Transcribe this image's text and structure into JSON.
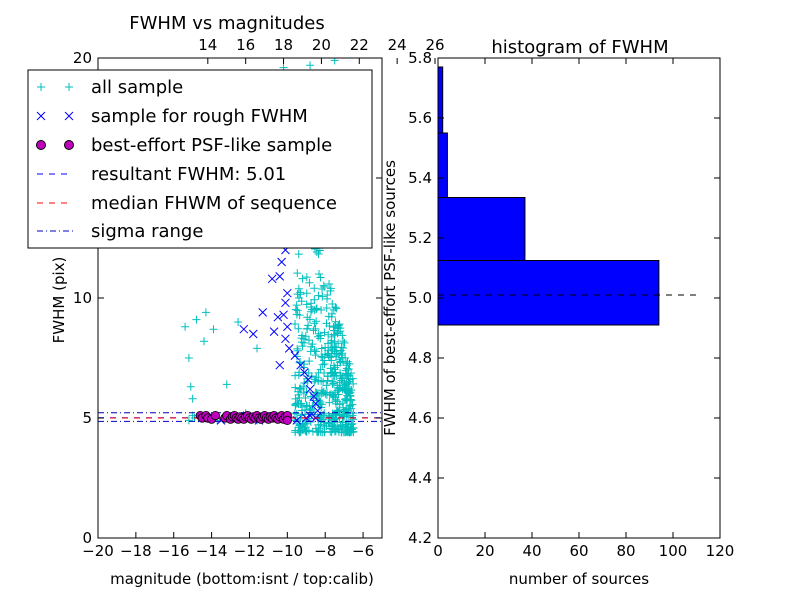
{
  "chart_data": [
    {
      "type": "scatter",
      "title": "FWHM vs magnitudes",
      "xlabel": "magnitude (bottom:isnt / top:calib)",
      "ylabel": "FWHM (pix)",
      "xlim": [
        -20,
        -5
      ],
      "ylim": [
        0,
        20
      ],
      "x_ticks": [
        -20,
        -18,
        -16,
        -14,
        -12,
        -10,
        -8,
        -6
      ],
      "x_tick_labels": [
        "−20",
        "−18",
        "−16",
        "−14",
        "−12",
        "−10",
        "−8",
        "−6"
      ],
      "y_ticks": [
        0,
        5,
        10,
        15,
        20
      ],
      "y_tick_labels": [
        "0",
        "5",
        "10",
        "15",
        "20"
      ],
      "top_axis": {
        "ticks": [
          14,
          16,
          18,
          20,
          22,
          24,
          26
        ],
        "labels": [
          "14",
          "16",
          "18",
          "20",
          "22",
          "24",
          "26"
        ],
        "offset": 28.2
      },
      "grid": false,
      "legend_position": "upper-left",
      "series": [
        {
          "name": "all sample",
          "marker": "plus",
          "color": "#00bfbf",
          "points": [
            [
              -15.4,
              8.8
            ],
            [
              -15.2,
              7.5
            ],
            [
              -15.1,
              6.3
            ],
            [
              -15.0,
              5.8
            ],
            [
              -15.0,
              5.1
            ],
            [
              -14.8,
              9.1
            ],
            [
              -14.4,
              8.2
            ],
            [
              -14.3,
              9.4
            ],
            [
              -13.9,
              8.7
            ],
            [
              -13.6,
              12.4
            ],
            [
              -13.2,
              6.4
            ],
            [
              -13.0,
              14.3
            ],
            [
              -12.8,
              18.7
            ],
            [
              -12.6,
              9.0
            ],
            [
              -12.2,
              5.2
            ],
            [
              -11.9,
              18.4
            ],
            [
              -11.6,
              7.9
            ],
            [
              -11.0,
              12.8
            ],
            [
              -10.6,
              16.1
            ],
            [
              -10.3,
              18.8
            ],
            [
              -15.2,
              4.9
            ],
            [
              -14.9,
              5.0
            ],
            [
              -14.6,
              5.1
            ],
            [
              -14.2,
              5.0
            ],
            [
              -13.7,
              4.9
            ],
            [
              -13.2,
              5.0
            ],
            [
              -12.7,
              5.1
            ],
            [
              -12.1,
              5.0
            ],
            [
              -11.6,
              4.9
            ],
            [
              -11.1,
              5.0
            ],
            [
              -10.6,
              5.1
            ],
            [
              -10.2,
              5.0
            ],
            [
              -9.9,
              4.9
            ],
            [
              -9.6,
              5.2
            ],
            [
              -9.3,
              5.0
            ],
            [
              -10.2,
              19.6
            ],
            [
              -9.9,
              19.1
            ],
            [
              -9.5,
              16.4
            ],
            [
              -9.1,
              18.3
            ],
            [
              -8.8,
              19.7
            ],
            [
              -8.4,
              19.2
            ],
            [
              -8.2,
              17.8
            ],
            [
              -8.0,
              18.8
            ],
            [
              -7.8,
              16.9
            ],
            [
              -7.5,
              19.9
            ]
          ],
          "cloud": {
            "count": 520,
            "mag_range": [
              -9.6,
              -6.5
            ],
            "fwhm_low": 4.4,
            "fwhm_high": 17.5,
            "seed": 7
          }
        },
        {
          "name": "sample for rough FWHM",
          "marker": "x",
          "color": "#0000ff",
          "points": [
            [
              -10.3,
              17.0
            ],
            [
              -10.2,
              16.2
            ],
            [
              -10.1,
              15.6
            ],
            [
              -10.0,
              15.1
            ],
            [
              -10.0,
              14.5
            ],
            [
              -10.3,
              13.8
            ],
            [
              -10.2,
              13.1
            ],
            [
              -10.0,
              12.6
            ],
            [
              -10.1,
              12.0
            ],
            [
              -10.3,
              11.5
            ],
            [
              -10.4,
              10.9
            ],
            [
              -10.0,
              10.2
            ],
            [
              -10.1,
              9.8
            ],
            [
              -10.2,
              9.3
            ],
            [
              -10.0,
              8.8
            ],
            [
              -10.1,
              8.3
            ],
            [
              -9.9,
              7.9
            ],
            [
              -9.6,
              7.6
            ],
            [
              -9.3,
              7.2
            ],
            [
              -9.1,
              6.9
            ],
            [
              -8.9,
              6.6
            ],
            [
              -8.8,
              6.2
            ],
            [
              -8.6,
              5.9
            ],
            [
              -8.5,
              5.6
            ],
            [
              -8.4,
              5.3
            ],
            [
              -11.8,
              16.6
            ],
            [
              -11.5,
              12.4
            ],
            [
              -11.2,
              14.3
            ],
            [
              -10.8,
              10.8
            ],
            [
              -10.5,
              9.2
            ],
            [
              -11.3,
              9.4
            ],
            [
              -12.3,
              8.7
            ],
            [
              -11.8,
              8.5
            ],
            [
              -10.7,
              8.6
            ],
            [
              -10.4,
              7.2
            ],
            [
              -14.5,
              5.0
            ],
            [
              -14.0,
              5.1
            ],
            [
              -13.5,
              4.9
            ],
            [
              -13.0,
              5.0
            ],
            [
              -12.5,
              5.1
            ],
            [
              -12.0,
              5.0
            ],
            [
              -11.5,
              4.9
            ],
            [
              -11.0,
              5.0
            ],
            [
              -10.5,
              5.1
            ],
            [
              -10.0,
              5.0
            ],
            [
              -9.5,
              4.9
            ],
            [
              -9.0,
              5.0
            ],
            [
              -8.8,
              5.1
            ],
            [
              -8.5,
              5.0
            ]
          ]
        },
        {
          "name": "best-effort PSF-like sample",
          "marker": "circle",
          "color": "#bf00bf",
          "points": [
            [
              -14.6,
              5.1
            ],
            [
              -14.5,
              5.0
            ],
            [
              -14.3,
              5.1
            ],
            [
              -14.2,
              5.0
            ],
            [
              -14.0,
              4.95
            ],
            [
              -13.8,
              5.1
            ],
            [
              -13.3,
              5.0
            ],
            [
              -13.2,
              5.1
            ],
            [
              -13.0,
              4.95
            ],
            [
              -12.9,
              5.05
            ],
            [
              -12.8,
              5.1
            ],
            [
              -12.7,
              5.0
            ],
            [
              -12.6,
              4.95
            ],
            [
              -12.5,
              5.05
            ],
            [
              -12.4,
              5.0
            ],
            [
              -12.3,
              4.95
            ],
            [
              -12.2,
              5.05
            ],
            [
              -12.1,
              5.1
            ],
            [
              -12.0,
              5.0
            ],
            [
              -11.9,
              4.95
            ],
            [
              -11.8,
              5.05
            ],
            [
              -11.7,
              5.0
            ],
            [
              -11.6,
              5.1
            ],
            [
              -11.5,
              5.0
            ],
            [
              -11.4,
              4.95
            ],
            [
              -11.3,
              5.05
            ],
            [
              -11.2,
              5.1
            ],
            [
              -11.1,
              5.0
            ],
            [
              -11.0,
              4.95
            ],
            [
              -10.9,
              5.05
            ],
            [
              -10.8,
              5.0
            ],
            [
              -10.7,
              5.1
            ],
            [
              -10.6,
              5.0
            ],
            [
              -10.5,
              4.95
            ],
            [
              -10.4,
              5.05
            ],
            [
              -10.3,
              5.1
            ],
            [
              -10.2,
              4.95
            ],
            [
              -10.1,
              5.05
            ],
            [
              -10.0,
              5.1
            ],
            [
              -10.0,
              4.9
            ]
          ]
        }
      ],
      "hlines": [
        {
          "name": "resultant FWHM: 5.01",
          "y": 5.01,
          "color": "#0000ff",
          "dash": "dashed"
        },
        {
          "name": "median FHWM of sequence",
          "y": 5.0,
          "color": "#ff0000",
          "dash": "dashed"
        },
        {
          "name": "sigma range",
          "y": 5.22,
          "color": "#0000bf",
          "dash": "dashdot"
        },
        {
          "name": "sigma range",
          "y": 4.86,
          "color": "#0000bf",
          "dash": "dashdot"
        }
      ]
    },
    {
      "type": "bar",
      "orientation": "horizontal",
      "title": "histogram of FWHM",
      "xlabel": "number of sources",
      "ylabel": "FWHM of best-effort PSF-like sources",
      "xlim": [
        0,
        120
      ],
      "ylim": [
        4.2,
        5.8
      ],
      "x_ticks": [
        0,
        20,
        40,
        60,
        80,
        100,
        120
      ],
      "x_tick_labels": [
        "0",
        "20",
        "40",
        "60",
        "80",
        "100",
        "120"
      ],
      "y_ticks": [
        4.2,
        4.4,
        4.6,
        4.8,
        5.0,
        5.2,
        5.4,
        5.6,
        5.8
      ],
      "y_tick_labels": [
        "4.2",
        "4.4",
        "4.6",
        "4.8",
        "5.0",
        "5.2",
        "5.4",
        "5.6",
        "5.8"
      ],
      "grid": false,
      "color": "#0000ff",
      "bins": [
        {
          "low": 4.91,
          "high": 5.125,
          "count": 94
        },
        {
          "low": 5.125,
          "high": 5.335,
          "count": 37
        },
        {
          "low": 5.335,
          "high": 5.55,
          "count": 4
        },
        {
          "low": 5.55,
          "high": 5.77,
          "count": 2
        }
      ],
      "hline": {
        "y": 5.01,
        "x_range": [
          0,
          110
        ],
        "color": "#000000",
        "dash": "dashed"
      }
    }
  ]
}
